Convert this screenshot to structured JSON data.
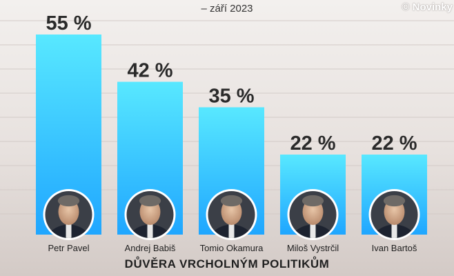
{
  "header": {
    "subtitle": "– září 2023",
    "credit": "© Novinky"
  },
  "footer": {
    "title": "DŮVĚRA VRCHOLNÝM POLITIKŮM"
  },
  "colors": {
    "bar_top": "#58e8ff",
    "bar_bottom": "#1fa6ff",
    "value_label": "#2a2a2a",
    "grid": "#d2cbc7"
  },
  "chart_data": {
    "type": "bar",
    "title": "DŮVĚRA VRCHOLNÝM POLITIKŮM",
    "subtitle": "– září 2023",
    "categories": [
      "Petr Pavel",
      "Andrej Babiš",
      "Tomio Okamura",
      "Miloš Vystrčil",
      "Ivan Bartoš"
    ],
    "values": [
      55,
      42,
      35,
      22,
      22
    ],
    "value_labels": [
      "55 %",
      "42 %",
      "35 %",
      "22 %",
      "22 %"
    ],
    "ylim": [
      0,
      60
    ],
    "grid": true,
    "legend": "none",
    "portraits": [
      "portrait-icon",
      "portrait-icon",
      "portrait-icon",
      "portrait-icon",
      "portrait-icon"
    ]
  }
}
